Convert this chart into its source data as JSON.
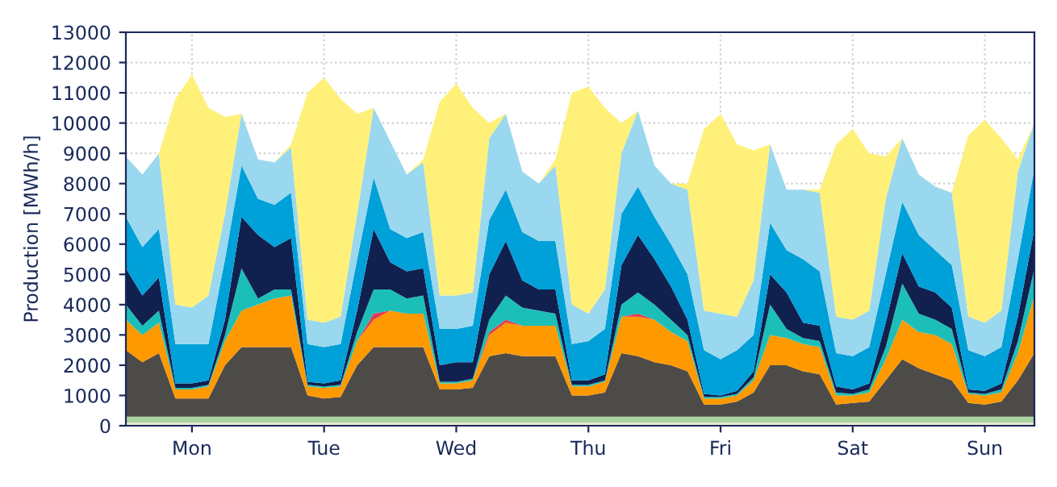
{
  "chart_data": {
    "type": "area",
    "stacked": true,
    "ylabel": "Production [MWh/h]",
    "categories": [
      null,
      null,
      null,
      null,
      "Mon",
      null,
      null,
      null,
      null,
      null,
      null,
      null,
      "Tue",
      null,
      null,
      null,
      null,
      null,
      null,
      null,
      "Wed",
      null,
      null,
      null,
      null,
      null,
      null,
      null,
      "Thu",
      null,
      null,
      null,
      null,
      null,
      null,
      null,
      "Fri",
      null,
      null,
      null,
      null,
      null,
      null,
      null,
      "Sat",
      null,
      null,
      null,
      null,
      null,
      null,
      null,
      "Sun",
      null,
      null,
      null
    ],
    "ylim": [
      0,
      13000
    ],
    "yticks": [
      0,
      1000,
      2000,
      3000,
      4000,
      5000,
      6000,
      7000,
      8000,
      9000,
      10000,
      11000,
      12000,
      13000
    ],
    "grid": true,
    "series": [
      {
        "color": "#f0e6d2",
        "values": [
          100,
          100,
          100,
          100,
          100,
          100,
          100,
          100,
          100,
          100,
          100,
          100,
          100,
          100,
          100,
          100,
          100,
          100,
          100,
          100,
          100,
          100,
          100,
          100,
          100,
          100,
          100,
          100,
          100,
          100,
          100,
          100,
          100,
          100,
          100,
          100,
          100,
          100,
          100,
          100,
          100,
          100,
          100,
          100,
          100,
          100,
          100,
          100,
          100,
          100,
          100,
          100,
          100,
          100,
          100,
          100
        ]
      },
      {
        "color": "#a8d5a2",
        "values": [
          200,
          200,
          200,
          200,
          200,
          200,
          200,
          200,
          200,
          200,
          200,
          200,
          200,
          200,
          200,
          200,
          200,
          200,
          200,
          200,
          200,
          200,
          200,
          200,
          200,
          200,
          200,
          200,
          200,
          200,
          200,
          200,
          200,
          200,
          200,
          200,
          200,
          200,
          200,
          200,
          200,
          200,
          200,
          200,
          200,
          200,
          200,
          200,
          200,
          200,
          200,
          200,
          200,
          200,
          200,
          200
        ]
      },
      {
        "color": "#4d4b48",
        "values": [
          2200,
          1800,
          2100,
          600,
          600,
          600,
          1700,
          2300,
          2300,
          2300,
          2300,
          700,
          600,
          650,
          1700,
          2300,
          2300,
          2300,
          2300,
          900,
          900,
          950,
          2000,
          2100,
          2000,
          2000,
          2000,
          700,
          700,
          800,
          2100,
          2000,
          1800,
          1700,
          1500,
          400,
          400,
          500,
          800,
          1700,
          1700,
          1500,
          1400,
          400,
          450,
          500,
          1200,
          1900,
          1600,
          1400,
          1200,
          450,
          400,
          500,
          1200,
          2100
        ]
      },
      {
        "color": "#ff9900",
        "values": [
          1000,
          900,
          1000,
          300,
          300,
          400,
          800,
          1200,
          1400,
          1600,
          1700,
          300,
          350,
          350,
          800,
          900,
          1200,
          1100,
          1100,
          200,
          200,
          250,
          700,
          1000,
          1000,
          1000,
          1000,
          300,
          300,
          350,
          1200,
          1300,
          1400,
          1100,
          1000,
          200,
          200,
          200,
          400,
          1000,
          900,
          900,
          900,
          300,
          250,
          300,
          700,
          1300,
          1200,
          1300,
          1200,
          300,
          300,
          300,
          900,
          1900
        ]
      },
      {
        "color": "#e8384f",
        "values": [
          0,
          0,
          0,
          0,
          0,
          0,
          0,
          0,
          0,
          0,
          0,
          0,
          0,
          0,
          0,
          200,
          0,
          0,
          0,
          0,
          0,
          0,
          100,
          100,
          0,
          0,
          0,
          0,
          0,
          0,
          0,
          100,
          0,
          0,
          0,
          0,
          0,
          0,
          0,
          0,
          0,
          0,
          0,
          0,
          0,
          0,
          0,
          0,
          0,
          0,
          0,
          0,
          0,
          0,
          0,
          0
        ]
      },
      {
        "color": "#1cbfb8",
        "values": [
          500,
          300,
          400,
          50,
          50,
          50,
          200,
          1400,
          200,
          300,
          200,
          50,
          50,
          50,
          300,
          800,
          700,
          500,
          600,
          50,
          50,
          50,
          400,
          800,
          600,
          500,
          400,
          50,
          50,
          50,
          400,
          700,
          500,
          400,
          200,
          50,
          50,
          50,
          100,
          1000,
          300,
          200,
          200,
          100,
          50,
          100,
          400,
          1200,
          600,
          500,
          500,
          50,
          50,
          100,
          400,
          900
        ]
      },
      {
        "color": "#10204f",
        "values": [
          1200,
          1000,
          1100,
          150,
          150,
          150,
          500,
          1700,
          2100,
          1400,
          1700,
          100,
          100,
          150,
          700,
          2000,
          900,
          900,
          900,
          550,
          650,
          550,
          1500,
          1800,
          900,
          700,
          800,
          150,
          150,
          200,
          1300,
          1900,
          1500,
          1100,
          500,
          100,
          50,
          100,
          200,
          1000,
          1200,
          500,
          500,
          200,
          150,
          200,
          800,
          1000,
          900,
          900,
          700,
          100,
          100,
          200,
          800,
          1300
        ]
      },
      {
        "color": "#00a0d8",
        "values": [
          1700,
          1600,
          1600,
          1300,
          1300,
          1200,
          2000,
          1700,
          1200,
          1400,
          1500,
          1250,
          1200,
          1200,
          1700,
          1700,
          1100,
          1100,
          1200,
          1200,
          1100,
          1200,
          1800,
          1700,
          1600,
          1600,
          1600,
          1200,
          1300,
          1500,
          1700,
          1600,
          1400,
          1400,
          1500,
          1450,
          1200,
          1350,
          1200,
          1700,
          1400,
          2100,
          1800,
          1100,
          1100,
          1200,
          1600,
          1700,
          1700,
          1400,
          1400,
          1300,
          1150,
          1200,
          1900,
          2000
        ]
      },
      {
        "color": "#9ad8ef",
        "values": [
          2000,
          2400,
          2500,
          1300,
          1200,
          1600,
          1500,
          1700,
          1300,
          1400,
          1500,
          800,
          800,
          900,
          1500,
          2300,
          2900,
          2100,
          2300,
          1100,
          1100,
          1100,
          2700,
          2500,
          2000,
          1900,
          2500,
          1300,
          900,
          1300,
          2000,
          2500,
          1700,
          2000,
          2800,
          1300,
          1500,
          1100,
          1800,
          2600,
          2000,
          2300,
          2600,
          1200,
          1200,
          1200,
          2500,
          2100,
          2000,
          2100,
          2400,
          1100,
          1100,
          1200,
          2900,
          1500
        ]
      },
      {
        "color": "#fff07a",
        "values": [
          0,
          0,
          0,
          6800,
          7700,
          6200,
          3200,
          0,
          0,
          0,
          100,
          7500,
          8100,
          7200,
          3300,
          0,
          0,
          0,
          100,
          6400,
          7000,
          6100,
          500,
          0,
          0,
          0,
          200,
          7000,
          7500,
          6000,
          1000,
          0,
          0,
          0,
          200,
          6000,
          6600,
          5700,
          4300,
          0,
          0,
          0,
          100,
          5700,
          6300,
          5200,
          1400,
          0,
          0,
          0,
          0,
          6000,
          6700,
          5700,
          400,
          0
        ]
      }
    ]
  }
}
